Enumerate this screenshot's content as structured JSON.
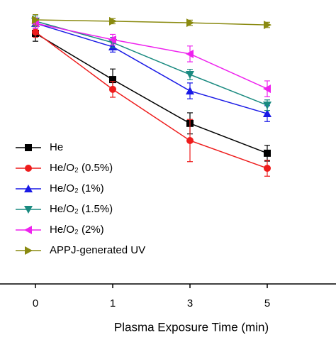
{
  "chart_data": {
    "type": "line",
    "x_label": "Plasma Exposure Time (min)",
    "categories": [
      "0",
      "1",
      "3",
      "5"
    ],
    "ylim": [
      0,
      100
    ],
    "series": [
      {
        "name": "He",
        "color": "#000000",
        "marker": "square",
        "values": [
          94.9,
          77.4,
          60.8,
          49.5
        ],
        "errors": [
          3,
          4,
          4,
          3
        ]
      },
      {
        "name": "He/O₂ (0.5%)",
        "color": "#ee1c1c",
        "marker": "circle",
        "values": [
          95.4,
          73.7,
          54.3,
          43.8
        ],
        "errors": [
          2,
          3,
          8,
          3
        ]
      },
      {
        "name": "He/O₂ (1%)",
        "color": "#1a1ae6",
        "marker": "triangle-up",
        "values": [
          98.7,
          89.8,
          73.1,
          64.5
        ],
        "errors": [
          2,
          2,
          3,
          3
        ]
      },
      {
        "name": "He/O₂ (1.5%)",
        "color": "#1a8a80",
        "marker": "triangle-down",
        "values": [
          99.5,
          91.4,
          79.3,
          67.7
        ],
        "errors": [
          2,
          2,
          2,
          2
        ]
      },
      {
        "name": "He/O₂ (2%)",
        "color": "#ee22ee",
        "marker": "triangle-left",
        "values": [
          98.7,
          92.5,
          87.1,
          73.9
        ],
        "errors": [
          2,
          2,
          3,
          3
        ]
      },
      {
        "name": "APPJ-generated UV",
        "color": "#8a8a10",
        "marker": "triangle-right",
        "values": [
          100,
          99.5,
          98.9,
          98.1
        ],
        "errors": [
          2,
          1,
          1,
          1
        ]
      }
    ]
  }
}
